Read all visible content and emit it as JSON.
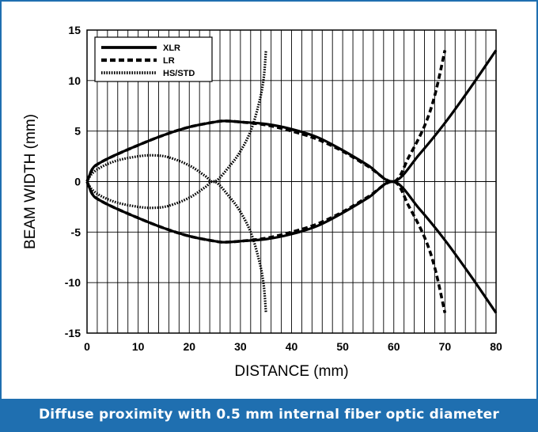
{
  "caption": "Diffuse proximity with 0.5 mm internal fiber optic diameter",
  "colors": {
    "frame": "#1f6fb0",
    "caption_bg": "#1f6fb0",
    "caption_text": "#ffffff",
    "series": "#000000",
    "grid": "#000000"
  },
  "chart_data": {
    "type": "line",
    "title": "",
    "xlabel": "DISTANCE (mm)",
    "ylabel": "BEAM WIDTH (mm)",
    "xlim": [
      0,
      80
    ],
    "ylim": [
      -15,
      15
    ],
    "x_ticks": [
      0,
      10,
      20,
      30,
      40,
      50,
      60,
      70,
      80
    ],
    "y_ticks": [
      15,
      10,
      5,
      0,
      -5,
      -10,
      -15
    ],
    "x_grid_step": 2,
    "y_grid_step": 5,
    "grid": true,
    "legend_position": "top-left",
    "series": [
      {
        "name": "XLR",
        "style": "solid",
        "upper": {
          "x": [
            0,
            1,
            2,
            5,
            10,
            15,
            20,
            25,
            27,
            30,
            35,
            40,
            45,
            50,
            55,
            60,
            65,
            70,
            75,
            80
          ],
          "y": [
            0,
            1.2,
            1.7,
            2.5,
            3.6,
            4.6,
            5.4,
            5.9,
            6.0,
            5.9,
            5.7,
            5.2,
            4.4,
            3.1,
            1.6,
            0,
            2.7,
            5.8,
            9.3,
            13.0
          ]
        },
        "lower": {
          "x": [
            0,
            1,
            2,
            5,
            10,
            15,
            20,
            25,
            27,
            30,
            35,
            40,
            45,
            50,
            55,
            60,
            65,
            70,
            75,
            80
          ],
          "y": [
            0,
            -1.2,
            -1.7,
            -2.5,
            -3.6,
            -4.6,
            -5.4,
            -5.9,
            -6.0,
            -5.9,
            -5.7,
            -5.2,
            -4.4,
            -3.1,
            -1.6,
            0,
            -2.7,
            -5.8,
            -9.3,
            -13.0
          ]
        }
      },
      {
        "name": "LR",
        "style": "dashed",
        "upper": {
          "x": [
            0,
            1,
            2,
            5,
            10,
            15,
            20,
            25,
            27,
            30,
            35,
            40,
            45,
            50,
            55,
            60,
            63,
            66,
            68,
            70
          ],
          "y": [
            0,
            1.2,
            1.7,
            2.5,
            3.6,
            4.6,
            5.4,
            5.9,
            6.0,
            5.9,
            5.6,
            5.0,
            4.2,
            3.0,
            1.5,
            0,
            2.5,
            5.5,
            8.5,
            13.0
          ]
        },
        "lower": {
          "x": [
            0,
            1,
            2,
            5,
            10,
            15,
            20,
            25,
            27,
            30,
            35,
            40,
            45,
            50,
            55,
            60,
            63,
            66,
            68,
            70
          ],
          "y": [
            0,
            -1.2,
            -1.7,
            -2.5,
            -3.6,
            -4.6,
            -5.4,
            -5.9,
            -6.0,
            -5.9,
            -5.6,
            -5.0,
            -4.2,
            -3.0,
            -1.5,
            0,
            -2.5,
            -5.5,
            -8.5,
            -13.0
          ]
        }
      },
      {
        "name": "HS/STD",
        "style": "dotted",
        "upper": {
          "x": [
            0,
            1,
            3,
            6,
            10,
            13,
            16,
            20,
            23,
            25,
            28,
            30,
            32,
            33.5,
            34.5,
            35
          ],
          "y": [
            0,
            0.8,
            1.5,
            2.1,
            2.5,
            2.6,
            2.4,
            1.6,
            0.6,
            0,
            1.6,
            3.0,
            5.0,
            7.5,
            10.0,
            13.0
          ]
        },
        "lower": {
          "x": [
            0,
            1,
            3,
            6,
            10,
            13,
            16,
            20,
            23,
            25,
            28,
            30,
            32,
            33.5,
            34.5,
            35
          ],
          "y": [
            0,
            -0.8,
            -1.5,
            -2.1,
            -2.5,
            -2.6,
            -2.4,
            -1.6,
            -0.6,
            0,
            -1.6,
            -3.0,
            -5.0,
            -7.5,
            -10.0,
            -13.0
          ]
        }
      }
    ]
  }
}
